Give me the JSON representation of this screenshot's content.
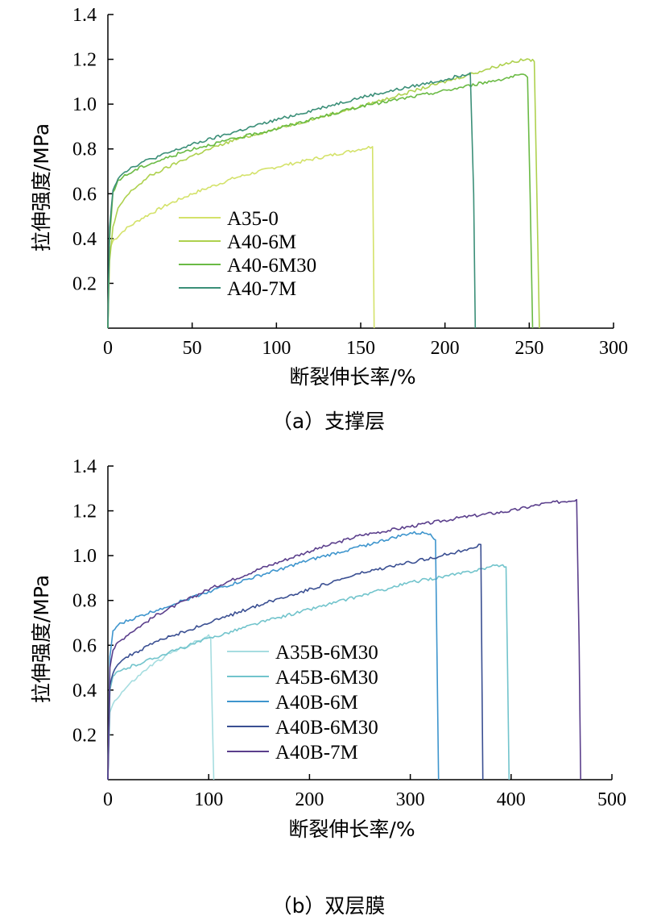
{
  "chart_data": [
    {
      "type": "line",
      "panel": "a",
      "caption": "（a）支撑层",
      "xlabel": "断裂伸长率/%",
      "ylabel": "拉伸强度/MPa",
      "xlim": [
        0,
        300
      ],
      "ylim": [
        0,
        1.4
      ],
      "xticks": [
        0,
        50,
        100,
        150,
        200,
        250,
        300
      ],
      "yticks": [
        0.2,
        0.4,
        0.6,
        0.8,
        1.0,
        1.2,
        1.4
      ],
      "xtick_labels": [
        "0",
        "50",
        "100",
        "150",
        "200",
        "250",
        "300"
      ],
      "ytick_labels": [
        "0.2",
        "0.4",
        "0.6",
        "0.8",
        "1.0",
        "1.2",
        "1.4"
      ],
      "legend_position": "lower-left",
      "series": [
        {
          "name": "A35-0",
          "color": "#d4e26a",
          "x": [
            0,
            1,
            3,
            6,
            10,
            20,
            35,
            50,
            75,
            100,
            125,
            150,
            157,
            157.5,
            158
          ],
          "y": [
            0,
            0.35,
            0.39,
            0.41,
            0.44,
            0.49,
            0.55,
            0.6,
            0.67,
            0.72,
            0.76,
            0.8,
            0.81,
            0.4,
            0
          ]
        },
        {
          "name": "A40-6M",
          "color": "#aed14e",
          "x": [
            0,
            1,
            3,
            6,
            10,
            15,
            25,
            50,
            75,
            100,
            150,
            200,
            240,
            250,
            253,
            254.5,
            256
          ],
          "y": [
            0,
            0.3,
            0.45,
            0.53,
            0.58,
            0.62,
            0.68,
            0.77,
            0.84,
            0.89,
            0.99,
            1.1,
            1.19,
            1.2,
            1.19,
            0.6,
            0
          ]
        },
        {
          "name": "A40-6M30",
          "color": "#6aba44",
          "x": [
            0,
            1,
            3,
            6,
            10,
            20,
            50,
            100,
            150,
            200,
            245,
            249,
            250.5,
            252
          ],
          "y": [
            0,
            0.4,
            0.6,
            0.66,
            0.68,
            0.72,
            0.8,
            0.89,
            0.99,
            1.06,
            1.13,
            1.12,
            0.6,
            0
          ]
        },
        {
          "name": "A40-7M",
          "color": "#3b8f78",
          "x": [
            0,
            1,
            3,
            6,
            10,
            20,
            50,
            100,
            150,
            200,
            215,
            217,
            218
          ],
          "y": [
            0,
            0.45,
            0.62,
            0.67,
            0.7,
            0.74,
            0.82,
            0.93,
            1.03,
            1.11,
            1.14,
            0.6,
            0
          ]
        }
      ]
    },
    {
      "type": "line",
      "panel": "b",
      "caption": "（b）双层膜",
      "xlabel": "断裂伸长率/%",
      "ylabel": "拉伸强度/MPa",
      "xlim": [
        0,
        500
      ],
      "ylim": [
        0,
        1.4
      ],
      "xticks": [
        0,
        100,
        200,
        300,
        400,
        500
      ],
      "yticks": [
        0.2,
        0.4,
        0.6,
        0.8,
        1.0,
        1.2,
        1.4
      ],
      "xtick_labels": [
        "0",
        "100",
        "200",
        "300",
        "400",
        "500"
      ],
      "ytick_labels": [
        "0.2",
        "0.4",
        "0.6",
        "0.8",
        "1.0",
        "1.2",
        "1.4"
      ],
      "legend_position": "lower-center",
      "series": [
        {
          "name": "A35B-6M30",
          "color": "#a6dde0",
          "x": [
            0,
            2,
            5,
            10,
            20,
            40,
            60,
            80,
            100,
            102,
            103.5,
            105
          ],
          "y": [
            0,
            0.3,
            0.34,
            0.37,
            0.42,
            0.5,
            0.56,
            0.6,
            0.64,
            0.63,
            0.3,
            0
          ]
        },
        {
          "name": "A45B-6M30",
          "color": "#72c4cc",
          "x": [
            0,
            2,
            5,
            10,
            20,
            50,
            100,
            150,
            200,
            250,
            300,
            350,
            390,
            395,
            396.5,
            398
          ],
          "y": [
            0,
            0.4,
            0.46,
            0.48,
            0.5,
            0.55,
            0.63,
            0.7,
            0.76,
            0.82,
            0.88,
            0.92,
            0.96,
            0.95,
            0.5,
            0
          ]
        },
        {
          "name": "A40B-6M",
          "color": "#3e95cd",
          "x": [
            0,
            2,
            5,
            10,
            20,
            50,
            100,
            150,
            200,
            250,
            300,
            320,
            325,
            326.5,
            328
          ],
          "y": [
            0,
            0.55,
            0.66,
            0.69,
            0.71,
            0.76,
            0.84,
            0.91,
            0.98,
            1.04,
            1.1,
            1.1,
            1.07,
            0.55,
            0
          ]
        },
        {
          "name": "A40B-6M30",
          "color": "#3a4f92",
          "x": [
            0,
            2,
            5,
            10,
            20,
            50,
            100,
            150,
            200,
            250,
            300,
            350,
            370,
            371,
            372
          ],
          "y": [
            0,
            0.42,
            0.48,
            0.52,
            0.55,
            0.62,
            0.7,
            0.78,
            0.85,
            0.92,
            0.97,
            1.02,
            1.05,
            0.5,
            0
          ]
        },
        {
          "name": "A40B-7M",
          "color": "#5b3f8c",
          "x": [
            0,
            2,
            5,
            10,
            20,
            50,
            100,
            150,
            200,
            250,
            300,
            350,
            400,
            430,
            465,
            467.5,
            469
          ],
          "y": [
            0,
            0.5,
            0.58,
            0.61,
            0.65,
            0.74,
            0.85,
            0.94,
            1.02,
            1.09,
            1.13,
            1.17,
            1.2,
            1.23,
            1.25,
            0.6,
            0
          ]
        }
      ]
    }
  ]
}
